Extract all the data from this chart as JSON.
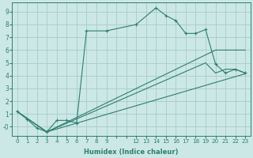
{
  "xlabel": "Humidex (Indice chaleur)",
  "bg_color": "#cce8e6",
  "grid_color": "#aacfcc",
  "line_color": "#2e7d72",
  "xlim": [
    -0.5,
    23.5
  ],
  "ylim": [
    -0.7,
    9.7
  ],
  "xtick_labels": [
    "0",
    "1",
    "2",
    "3",
    "4",
    "5",
    "6",
    "7",
    "8",
    "9",
    "",
    "",
    "12",
    "13",
    "14",
    "15",
    "16",
    "17",
    "18",
    "19",
    "20",
    "21",
    "22",
    "23"
  ],
  "xtick_positions": [
    0,
    1,
    2,
    3,
    4,
    5,
    6,
    7,
    8,
    9,
    10,
    11,
    12,
    13,
    14,
    15,
    16,
    17,
    18,
    19,
    20,
    21,
    22,
    23
  ],
  "ytick_positions": [
    0,
    1,
    2,
    3,
    4,
    5,
    6,
    7,
    8,
    9
  ],
  "ytick_labels": [
    "-0",
    "1",
    "2",
    "3",
    "4",
    "5",
    "6",
    "7",
    "8",
    "9"
  ],
  "series": [
    {
      "x": [
        0,
        1,
        2,
        3,
        4,
        5,
        6,
        7,
        9,
        12,
        14,
        15,
        16,
        17,
        18,
        19,
        20,
        21,
        22,
        23
      ],
      "y": [
        1.2,
        0.6,
        -0.1,
        -0.4,
        0.5,
        0.5,
        0.3,
        7.5,
        7.5,
        8.0,
        9.3,
        8.7,
        8.3,
        7.3,
        7.3,
        7.6,
        4.9,
        4.2,
        4.5,
        4.2
      ],
      "marker": "+"
    },
    {
      "x": [
        0,
        3,
        23
      ],
      "y": [
        1.2,
        -0.4,
        4.15
      ],
      "marker": null
    },
    {
      "x": [
        0,
        3,
        20,
        23
      ],
      "y": [
        1.2,
        -0.4,
        6.0,
        6.0
      ],
      "marker": null
    },
    {
      "x": [
        0,
        3,
        19,
        20,
        21,
        22,
        23
      ],
      "y": [
        1.2,
        -0.4,
        5.0,
        4.2,
        4.5,
        4.5,
        4.2
      ],
      "marker": null
    }
  ]
}
